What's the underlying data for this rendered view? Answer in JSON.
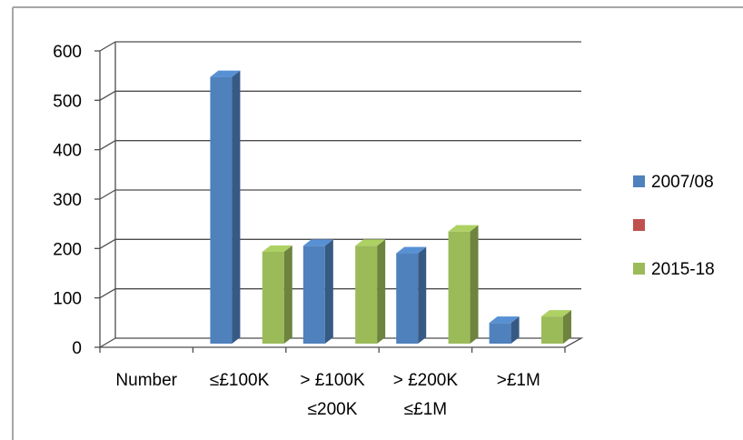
{
  "chart_data": {
    "type": "bar",
    "categories": [
      "Number",
      "≤£100K",
      "> £100K ≤200K",
      "> £200K ≤£1M",
      ">£1M"
    ],
    "category_lines": [
      [
        "Number"
      ],
      [
        "≤£100K"
      ],
      [
        "> £100K",
        "≤200K"
      ],
      [
        "> £200K",
        "≤£1M"
      ],
      [
        ">£1M"
      ]
    ],
    "series": [
      {
        "name": "2007/08",
        "color": "#4f81bd",
        "values": [
          null,
          540,
          198,
          183,
          42
        ]
      },
      {
        "name": "",
        "color": "#c0504d",
        "values": [
          null,
          null,
          null,
          null,
          null
        ]
      },
      {
        "name": "2015-18",
        "color": "#9bbb59",
        "values": [
          null,
          186,
          198,
          227,
          55
        ]
      }
    ],
    "y_ticks": [
      "0",
      "100",
      "200",
      "300",
      "400",
      "500",
      "600"
    ],
    "ylim": [
      0,
      600
    ],
    "grid": true,
    "legend_position": "right",
    "three_d": true
  }
}
